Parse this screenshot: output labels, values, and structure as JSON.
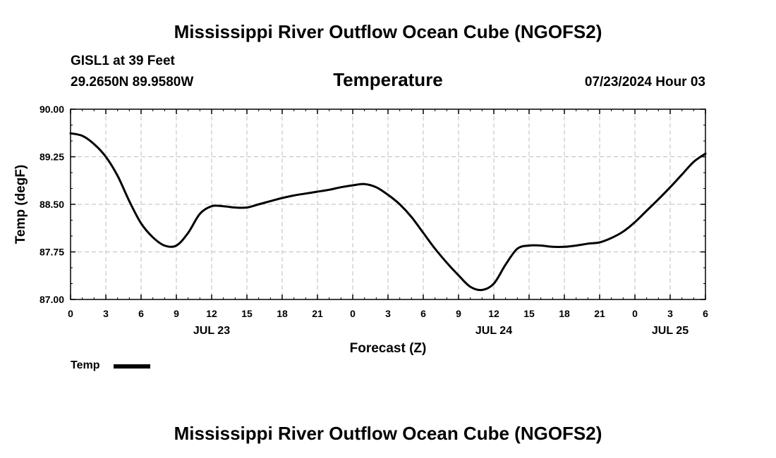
{
  "header": {
    "title_top": "Mississippi River Outflow Ocean Cube (NGOFS2)",
    "station": "GISL1 at 39 Feet",
    "coords": "29.2650N  89.9580W",
    "panel_title": "Temperature",
    "datetime": "07/23/2024 Hour 03"
  },
  "footer": {
    "title_bottom": "Mississippi River Outflow Ocean Cube (NGOFS2)"
  },
  "legend": {
    "label": "Temp",
    "color": "#000000"
  },
  "chart_data": {
    "type": "line",
    "title": "Temperature",
    "xlabel": "Forecast (Z)",
    "ylabel": "Temp (degF)",
    "xlim": [
      0,
      54
    ],
    "ylim": [
      87.0,
      90.0
    ],
    "x_ticks": [
      0,
      3,
      6,
      9,
      12,
      15,
      18,
      21,
      24,
      27,
      30,
      33,
      36,
      39,
      42,
      45,
      48,
      51,
      54
    ],
    "x_tick_labels": [
      "0",
      "3",
      "6",
      "9",
      "12",
      "15",
      "18",
      "21",
      "0",
      "3",
      "6",
      "9",
      "12",
      "15",
      "18",
      "21",
      "0",
      "3",
      "6"
    ],
    "y_ticks": [
      87.0,
      87.75,
      88.5,
      89.25,
      90.0
    ],
    "y_tick_labels": [
      "87.00",
      "87.75",
      "88.50",
      "89.25",
      "90.00"
    ],
    "date_labels": [
      {
        "text": "JUL 23",
        "x": 12
      },
      {
        "text": "JUL 24",
        "x": 36
      },
      {
        "text": "JUL 25",
        "x": 51
      }
    ],
    "grid": true,
    "series": [
      {
        "name": "Temp",
        "color": "#000000",
        "x": [
          0,
          1,
          2,
          3,
          4,
          5,
          6,
          7,
          8,
          9,
          10,
          11,
          12,
          13,
          14,
          15,
          16,
          17,
          18,
          19,
          20,
          21,
          22,
          23,
          24,
          25,
          26,
          27,
          28,
          29,
          30,
          31,
          32,
          33,
          34,
          35,
          36,
          37,
          38,
          39,
          40,
          41,
          42,
          43,
          44,
          45,
          46,
          47,
          48,
          49,
          50,
          51,
          52,
          53,
          54
        ],
        "values": [
          89.62,
          89.58,
          89.45,
          89.25,
          88.95,
          88.55,
          88.2,
          87.98,
          87.85,
          87.85,
          88.05,
          88.35,
          88.47,
          88.47,
          88.45,
          88.45,
          88.5,
          88.55,
          88.6,
          88.64,
          88.67,
          88.7,
          88.73,
          88.77,
          88.8,
          88.82,
          88.77,
          88.65,
          88.5,
          88.3,
          88.05,
          87.8,
          87.58,
          87.38,
          87.2,
          87.15,
          87.25,
          87.55,
          87.8,
          87.85,
          87.85,
          87.83,
          87.83,
          87.85,
          87.88,
          87.9,
          87.97,
          88.07,
          88.22,
          88.4,
          88.58,
          88.77,
          88.97,
          89.17,
          89.3
        ]
      }
    ]
  }
}
